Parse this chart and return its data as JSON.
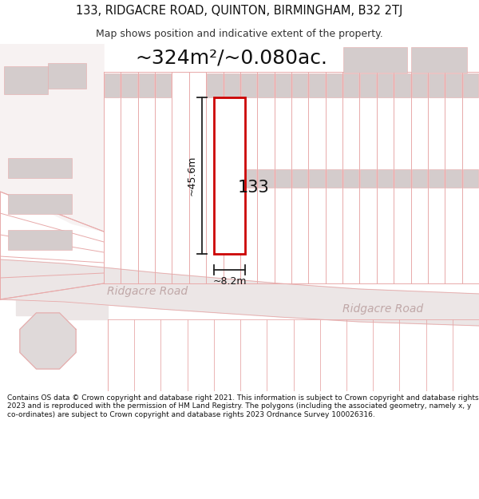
{
  "title_line1": "133, RIDGACRE ROAD, QUINTON, BIRMINGHAM, B32 2TJ",
  "title_line2": "Map shows position and indicative extent of the property.",
  "area_text": "~324m²/~0.080ac.",
  "dim_height": "~45.6m",
  "dim_width": "~8.2m",
  "plot_label": "133",
  "road_label1": "Ridgacre Road",
  "road_label2": "Ridgacre Road",
  "footer_text": "Contains OS data © Crown copyright and database right 2021. This information is subject to Crown copyright and database rights 2023 and is reproduced with the permission of HM Land Registry. The polygons (including the associated geometry, namely x, y co-ordinates) are subject to Crown copyright and database rights 2023 Ordnance Survey 100026316.",
  "bg_color": "#ffffff",
  "map_bg": "#f7f2f2",
  "plot_fill": "#ffffff",
  "plot_edge": "#cc0000",
  "grid_line_color": "#e8aaaa",
  "building_fill": "#d4cccc",
  "dim_line_color": "#222222",
  "road_text_color": "#c0a8a8",
  "title1_size": 10.5,
  "title2_size": 9,
  "area_fontsize": 18,
  "footer_fontsize": 6.5
}
